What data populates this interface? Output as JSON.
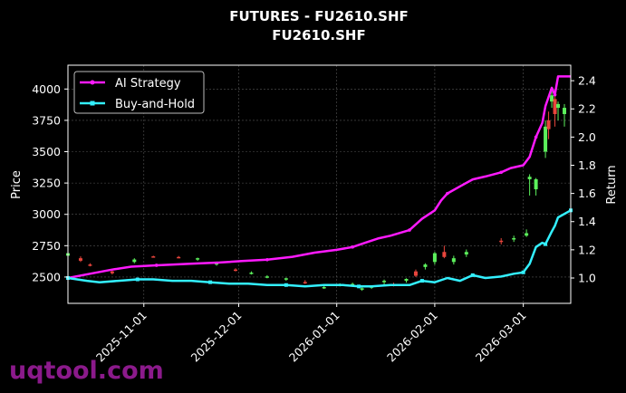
{
  "chart_data": {
    "type": "line",
    "title": "FUTURES - FU2610.SHF",
    "subtitle": "FU2610.SHF",
    "ylabel_left": "Price",
    "ylabel_right": "Return",
    "x_ticks": [
      "2025-11-01",
      "2025-12-01",
      "2026-01-01",
      "2026-02-01",
      "2026-03-01"
    ],
    "y_left_ticks": [
      2500,
      2750,
      3000,
      3250,
      3500,
      3750,
      4000
    ],
    "y_left_range": [
      2290,
      4190
    ],
    "y_right_ticks": [
      1.0,
      1.2,
      1.4,
      1.6,
      1.8,
      2.0,
      2.2,
      2.4
    ],
    "y_right_range": [
      0.82,
      2.51
    ],
    "x_range": [
      "2025-10-08",
      "2026-03-16"
    ],
    "grid": true,
    "legend_position": "top-left",
    "series": [
      {
        "name": "AI Strategy",
        "color": "#ff1aff",
        "axis": "right",
        "points": [
          [
            "2025-10-08",
            1.0
          ],
          [
            "2025-10-15",
            1.03
          ],
          [
            "2025-10-22",
            1.06
          ],
          [
            "2025-10-28",
            1.08
          ],
          [
            "2025-11-05",
            1.09
          ],
          [
            "2025-11-15",
            1.1
          ],
          [
            "2025-11-25",
            1.11
          ],
          [
            "2025-12-02",
            1.12
          ],
          [
            "2025-12-10",
            1.13
          ],
          [
            "2025-12-18",
            1.15
          ],
          [
            "2025-12-25",
            1.18
          ],
          [
            "2026-01-01",
            1.2
          ],
          [
            "2026-01-06",
            1.22
          ],
          [
            "2026-01-10",
            1.25
          ],
          [
            "2026-01-14",
            1.28
          ],
          [
            "2026-01-18",
            1.3
          ],
          [
            "2026-01-24",
            1.34
          ],
          [
            "2026-01-28",
            1.42
          ],
          [
            "2026-02-01",
            1.48
          ],
          [
            "2026-02-03",
            1.55
          ],
          [
            "2026-02-05",
            1.6
          ],
          [
            "2026-02-09",
            1.65
          ],
          [
            "2026-02-13",
            1.7
          ],
          [
            "2026-02-17",
            1.72
          ],
          [
            "2026-02-22",
            1.75
          ],
          [
            "2026-02-25",
            1.78
          ],
          [
            "2026-03-01",
            1.8
          ],
          [
            "2026-03-03",
            1.86
          ],
          [
            "2026-03-05",
            2.0
          ],
          [
            "2026-03-07",
            2.1
          ],
          [
            "2026-03-08",
            2.22
          ],
          [
            "2026-03-10",
            2.35
          ],
          [
            "2026-03-11",
            2.3
          ],
          [
            "2026-03-12",
            2.43
          ],
          [
            "2026-03-16",
            2.43
          ]
        ]
      },
      {
        "name": "Buy-and-Hold",
        "color": "#33f0ff",
        "axis": "right",
        "points": [
          [
            "2025-10-08",
            1.0
          ],
          [
            "2025-10-14",
            0.98
          ],
          [
            "2025-10-18",
            0.97
          ],
          [
            "2025-10-24",
            0.98
          ],
          [
            "2025-10-30",
            0.99
          ],
          [
            "2025-11-04",
            0.99
          ],
          [
            "2025-11-10",
            0.98
          ],
          [
            "2025-11-16",
            0.98
          ],
          [
            "2025-11-22",
            0.97
          ],
          [
            "2025-11-28",
            0.96
          ],
          [
            "2025-12-04",
            0.96
          ],
          [
            "2025-12-10",
            0.95
          ],
          [
            "2025-12-16",
            0.95
          ],
          [
            "2025-12-22",
            0.94
          ],
          [
            "2025-12-28",
            0.95
          ],
          [
            "2026-01-03",
            0.95
          ],
          [
            "2026-01-08",
            0.94
          ],
          [
            "2026-01-12",
            0.94
          ],
          [
            "2026-01-18",
            0.95
          ],
          [
            "2026-01-24",
            0.95
          ],
          [
            "2026-01-28",
            0.98
          ],
          [
            "2026-02-01",
            0.97
          ],
          [
            "2026-02-05",
            1.0
          ],
          [
            "2026-02-09",
            0.98
          ],
          [
            "2026-02-13",
            1.02
          ],
          [
            "2026-02-17",
            1.0
          ],
          [
            "2026-02-22",
            1.01
          ],
          [
            "2026-02-26",
            1.03
          ],
          [
            "2026-03-01",
            1.04
          ],
          [
            "2026-03-03",
            1.1
          ],
          [
            "2026-03-05",
            1.22
          ],
          [
            "2026-03-07",
            1.25
          ],
          [
            "2026-03-08",
            1.24
          ],
          [
            "2026-03-10",
            1.33
          ],
          [
            "2026-03-11",
            1.37
          ],
          [
            "2026-03-12",
            1.43
          ],
          [
            "2026-03-16",
            1.48
          ]
        ]
      }
    ],
    "candles": [
      [
        "2025-10-08",
        2670,
        2705,
        2660,
        2690
      ],
      [
        "2025-10-12",
        2650,
        2665,
        2620,
        2630
      ],
      [
        "2025-10-15",
        2600,
        2610,
        2585,
        2595
      ],
      [
        "2025-10-22",
        2545,
        2560,
        2520,
        2530
      ],
      [
        "2025-10-29",
        2620,
        2650,
        2610,
        2640
      ],
      [
        "2025-11-04",
        2665,
        2670,
        2655,
        2660
      ],
      [
        "2025-11-12",
        2660,
        2668,
        2650,
        2655
      ],
      [
        "2025-11-18",
        2640,
        2655,
        2630,
        2650
      ],
      [
        "2025-11-24",
        2600,
        2620,
        2590,
        2610
      ],
      [
        "2025-11-30",
        2560,
        2570,
        2545,
        2555
      ],
      [
        "2025-12-05",
        2530,
        2545,
        2520,
        2535
      ],
      [
        "2025-12-10",
        2500,
        2515,
        2490,
        2505
      ],
      [
        "2025-12-16",
        2480,
        2495,
        2470,
        2490
      ],
      [
        "2025-12-22",
        2460,
        2475,
        2445,
        2450
      ],
      [
        "2025-12-28",
        2420,
        2435,
        2405,
        2420
      ],
      [
        "2026-01-02",
        2435,
        2450,
        2425,
        2440
      ],
      [
        "2026-01-06",
        2440,
        2455,
        2430,
        2445
      ],
      [
        "2026-01-09",
        2400,
        2420,
        2390,
        2410
      ],
      [
        "2026-01-12",
        2415,
        2430,
        2405,
        2425
      ],
      [
        "2026-01-16",
        2460,
        2480,
        2440,
        2470
      ],
      [
        "2026-01-19",
        2440,
        2455,
        2425,
        2430
      ],
      [
        "2026-01-23",
        2470,
        2490,
        2455,
        2485
      ],
      [
        "2026-01-26",
        2545,
        2560,
        2500,
        2510
      ],
      [
        "2026-01-29",
        2580,
        2610,
        2560,
        2600
      ],
      [
        "2026-02-01",
        2620,
        2700,
        2600,
        2690
      ],
      [
        "2026-02-04",
        2700,
        2750,
        2650,
        2660
      ],
      [
        "2026-02-07",
        2620,
        2670,
        2600,
        2650
      ],
      [
        "2026-02-11",
        2680,
        2720,
        2660,
        2700
      ],
      [
        "2026-02-22",
        2790,
        2810,
        2760,
        2780
      ],
      [
        "2026-02-26",
        2800,
        2830,
        2780,
        2810
      ],
      [
        "2026-03-02",
        2830,
        2880,
        2820,
        2850
      ],
      [
        "2026-03-03",
        3280,
        3320,
        3150,
        3300
      ],
      [
        "2026-03-05",
        3200,
        3290,
        3150,
        3280
      ],
      [
        "2026-03-08",
        3500,
        3750,
        3450,
        3700
      ],
      [
        "2026-03-09",
        3750,
        3820,
        3600,
        3680
      ],
      [
        "2026-03-10",
        3900,
        3980,
        3850,
        3950
      ],
      [
        "2026-03-11",
        3920,
        3950,
        3700,
        3800
      ],
      [
        "2026-03-12",
        3850,
        3900,
        3750,
        3880
      ],
      [
        "2026-03-14",
        3800,
        3880,
        3700,
        3850
      ]
    ]
  },
  "colors": {
    "up": "#5cf05c",
    "down": "#e8453c",
    "background": "#000000",
    "grid": "#555555",
    "legend_border": "#bbbbbb"
  },
  "watermark": "uqtool.com"
}
